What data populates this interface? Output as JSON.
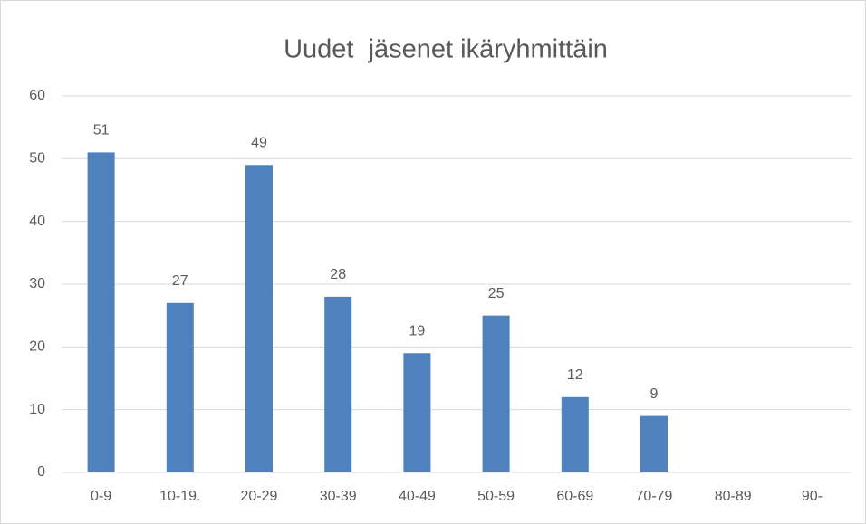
{
  "chart_data": {
    "type": "bar",
    "title": "Uudet  jäsenet ikäryhmittäin",
    "categories": [
      "0-9",
      "10-19.",
      "20-29",
      "30-39",
      "40-49",
      "50-59",
      "60-69",
      "70-79",
      "80-89",
      "90-"
    ],
    "values": [
      51,
      27,
      49,
      28,
      19,
      25,
      12,
      9,
      null,
      null
    ],
    "color": "#4f81bd",
    "ylim": [
      0,
      60
    ],
    "yticks": [
      0,
      10,
      20,
      30,
      40,
      50,
      60
    ],
    "grid": true
  }
}
